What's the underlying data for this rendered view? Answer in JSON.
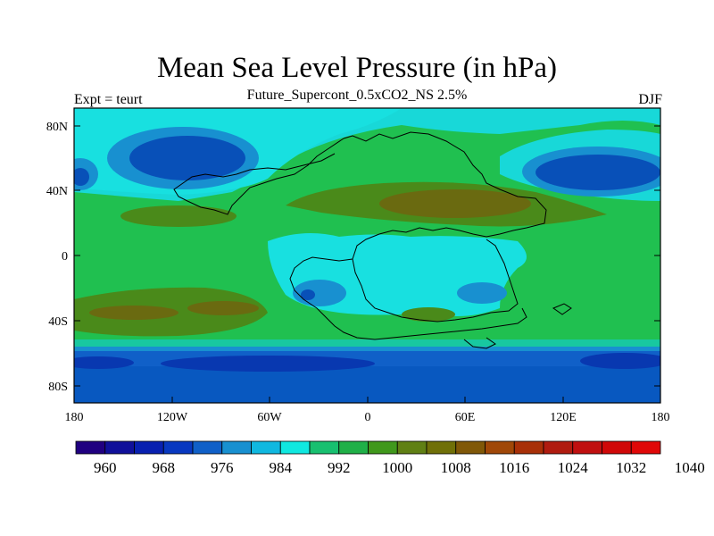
{
  "map": {
    "title": "Mean Sea Level Pressure (in hPa)",
    "subtitle": "Future_Supercont_0.5xCO2_NS 2.5%",
    "left_label": "Expt = teurt",
    "right_label": "DJF",
    "lat_ticks": [
      "80N",
      "40N",
      "0",
      "40S",
      "80S"
    ],
    "lon_ticks": [
      "180",
      "120W",
      "60W",
      "0",
      "60E",
      "120E",
      "180"
    ]
  },
  "colorbar": {
    "labels": [
      "960",
      "968",
      "976",
      "984",
      "992",
      "1000",
      "1008",
      "1016",
      "1024",
      "1032",
      "1040"
    ],
    "colors": [
      "#200080",
      "#10109a",
      "#0820b0",
      "#0838c0",
      "#1060c8",
      "#1890d0",
      "#10b8e0",
      "#10e8e0",
      "#18c070",
      "#20b048",
      "#40981c",
      "#608014",
      "#707008",
      "#805808",
      "#a04808",
      "#a83008",
      "#b01c10",
      "#c01010",
      "#d00808",
      "#e00808"
    ],
    "map_colors": {
      "deep_blue": "#0840b0",
      "mid_blue": "#1060c8",
      "light_blue": "#1890d0",
      "cyan": "#18c8d8",
      "bright_cyan": "#10e8e0",
      "green": "#20c050",
      "olive": "#4a8a1a",
      "brown_olive": "#6a6a10"
    }
  }
}
